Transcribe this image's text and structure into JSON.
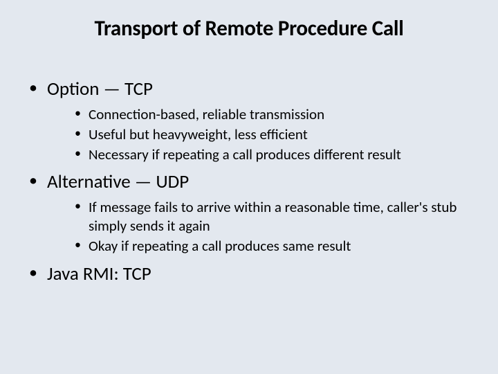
{
  "slide": {
    "title": "Transport of Remote Procedure Call",
    "background_color": "#e3e8ef",
    "text_color": "#000000",
    "title_fontsize": 31,
    "l1_fontsize": 27,
    "l2_fontsize": 21,
    "bullets": [
      {
        "text": "Option — TCP",
        "children": [
          "Connection-based, reliable transmission",
          "Useful but heavyweight, less efficient",
          "Necessary if repeating a call produces different result"
        ]
      },
      {
        "text": "Alternative — UDP",
        "children": [
          "If message fails to arrive within a reasonable time, caller's stub simply sends it again",
          "Okay if repeating a call produces same result"
        ]
      },
      {
        "text": "Java RMI: TCP",
        "children": []
      }
    ]
  }
}
